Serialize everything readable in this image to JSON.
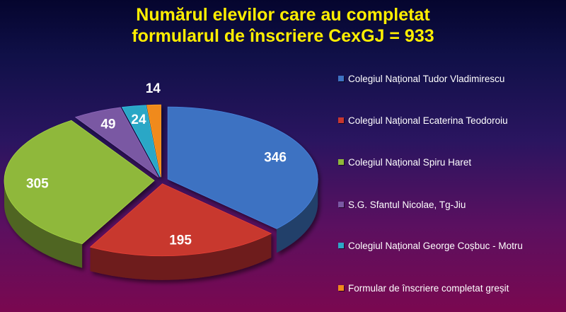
{
  "title": {
    "line1": "Numărul elevilor care au completat",
    "line2": "formularul de înscriere CexGJ = 933"
  },
  "chart_data": {
    "type": "pie",
    "style": "3d-exploded",
    "title": "Numărul elevilor care au completat formularul de înscriere CexGJ = 933",
    "legend_position": "right",
    "data_labels": true,
    "categories": [
      "Colegiul Național Tudor Vladimirescu",
      "Colegiul Național Ecaterina Teodoroiu",
      "Colegiul Național Spiru Haret",
      "S.G.  Sfantul Nicolae, Tg-Jiu",
      "Colegiul Național George Coșbuc - Motru",
      "Formular de înscriere completat greșit"
    ],
    "values": [
      346,
      195,
      305,
      49,
      24,
      14
    ],
    "labels": [
      "346",
      "195",
      "305",
      "49",
      "24",
      "14"
    ],
    "colors": [
      "#3e72c2",
      "#c8372f",
      "#8fb83a",
      "#7a58a3",
      "#2ca7c6",
      "#f08a1c"
    ]
  }
}
